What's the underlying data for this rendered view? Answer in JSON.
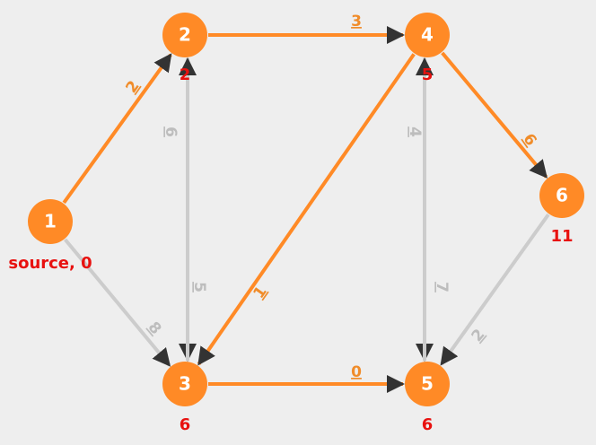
{
  "colors": {
    "background": "#eeeeee",
    "node_fill": "#ff8a26",
    "highlight_edge": "#ff8a26",
    "normal_edge": "#cccccc",
    "arrowhead": "#333333",
    "node_text": "#ffffff",
    "distance_text": "#e8110f",
    "highlight_weight": "#f08c2a",
    "normal_weight": "#bdbdbd"
  },
  "nodes": [
    {
      "id": "1",
      "label": "1",
      "distance": "source, 0"
    },
    {
      "id": "2",
      "label": "2",
      "distance": "2"
    },
    {
      "id": "3",
      "label": "3",
      "distance": "6"
    },
    {
      "id": "4",
      "label": "4",
      "distance": "5"
    },
    {
      "id": "5",
      "label": "5",
      "distance": "6"
    },
    {
      "id": "6",
      "label": "6",
      "distance": "11"
    }
  ],
  "edges": [
    {
      "from": "1",
      "to": "2",
      "weight": "2",
      "highlighted": true
    },
    {
      "from": "1",
      "to": "3",
      "weight": "8",
      "highlighted": false
    },
    {
      "from": "2",
      "to": "3",
      "weight": "6",
      "highlighted": false
    },
    {
      "from": "2",
      "to": "4",
      "weight": "3",
      "highlighted": true
    },
    {
      "from": "3",
      "to": "2",
      "weight": "5",
      "highlighted": false
    },
    {
      "from": "3",
      "to": "5",
      "weight": "0",
      "highlighted": true
    },
    {
      "from": "4",
      "to": "3",
      "weight": "1",
      "highlighted": true
    },
    {
      "from": "4",
      "to": "6",
      "weight": "6",
      "highlighted": true
    },
    {
      "from": "4",
      "to": "5",
      "weight": "7",
      "highlighted": false
    },
    {
      "from": "5",
      "to": "4",
      "weight": "4",
      "highlighted": false
    },
    {
      "from": "6",
      "to": "5",
      "weight": "2",
      "highlighted": false
    }
  ]
}
